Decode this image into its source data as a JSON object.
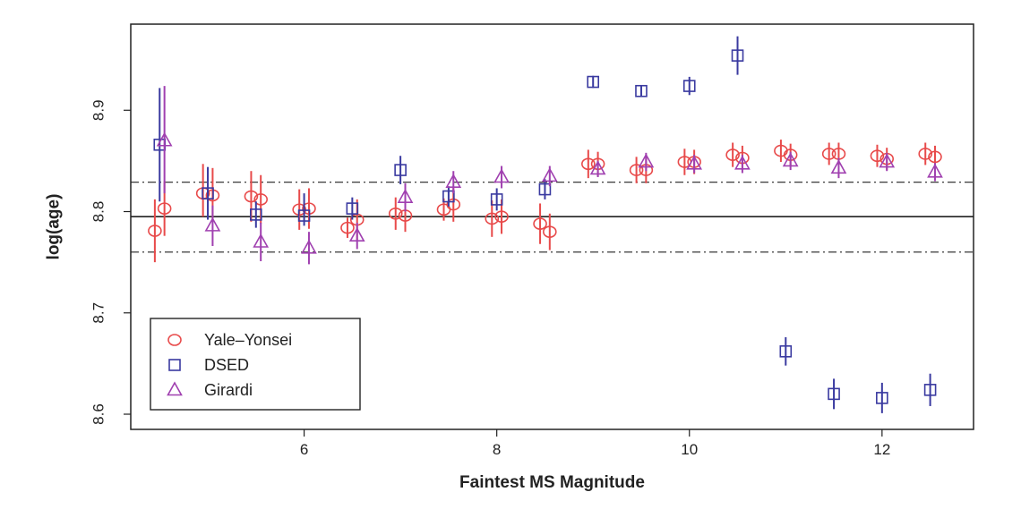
{
  "chart_data": {
    "type": "scatter",
    "xlabel": "Faintest MS Magnitude",
    "ylabel": "log(age)",
    "xlim": [
      4.2,
      12.95
    ],
    "ylim": [
      8.585,
      8.985
    ],
    "xticks": [
      6,
      8,
      10,
      12
    ],
    "xtick_labels": [
      "6",
      "8",
      "10",
      "12"
    ],
    "yticks": [
      8.6,
      8.7,
      8.8,
      8.9
    ],
    "ytick_labels": [
      "8.6",
      "8.7",
      "8.8",
      "8.9"
    ],
    "legend_position": "bottom-left",
    "reference_lines": [
      {
        "y": 8.795,
        "style": "solid"
      },
      {
        "y": 8.829,
        "style": "dash-dot"
      },
      {
        "y": 8.76,
        "style": "dash-dot"
      }
    ],
    "series": [
      {
        "name": "Yale–Yonsei",
        "marker": "circle",
        "color": "#e84a4a",
        "points": [
          {
            "x": 4.45,
            "y": 8.781,
            "ylo": 8.75,
            "yhi": 8.812
          },
          {
            "x": 4.55,
            "y": 8.803,
            "ylo": 8.776,
            "yhi": 8.83
          },
          {
            "x": 4.95,
            "y": 8.818,
            "ylo": 8.795,
            "yhi": 8.847
          },
          {
            "x": 5.05,
            "y": 8.816,
            "ylo": 8.793,
            "yhi": 8.843
          },
          {
            "x": 5.45,
            "y": 8.815,
            "ylo": 8.79,
            "yhi": 8.84
          },
          {
            "x": 5.55,
            "y": 8.812,
            "ylo": 8.788,
            "yhi": 8.836
          },
          {
            "x": 5.95,
            "y": 8.802,
            "ylo": 8.782,
            "yhi": 8.822
          },
          {
            "x": 6.05,
            "y": 8.803,
            "ylo": 8.783,
            "yhi": 8.823
          },
          {
            "x": 6.45,
            "y": 8.784,
            "ylo": 8.774,
            "yhi": 8.794
          },
          {
            "x": 6.55,
            "y": 8.792,
            "ylo": 8.772,
            "yhi": 8.812
          },
          {
            "x": 6.95,
            "y": 8.798,
            "ylo": 8.782,
            "yhi": 8.814
          },
          {
            "x": 7.05,
            "y": 8.796,
            "ylo": 8.78,
            "yhi": 8.812
          },
          {
            "x": 7.45,
            "y": 8.802,
            "ylo": 8.791,
            "yhi": 8.813
          },
          {
            "x": 7.55,
            "y": 8.807,
            "ylo": 8.79,
            "yhi": 8.824
          },
          {
            "x": 7.95,
            "y": 8.793,
            "ylo": 8.775,
            "yhi": 8.811
          },
          {
            "x": 8.05,
            "y": 8.795,
            "ylo": 8.778,
            "yhi": 8.812
          },
          {
            "x": 8.45,
            "y": 8.788,
            "ylo": 8.768,
            "yhi": 8.808
          },
          {
            "x": 8.55,
            "y": 8.78,
            "ylo": 8.762,
            "yhi": 8.798
          },
          {
            "x": 8.95,
            "y": 8.847,
            "ylo": 8.833,
            "yhi": 8.861
          },
          {
            "x": 9.05,
            "y": 8.847,
            "ylo": 8.835,
            "yhi": 8.859
          },
          {
            "x": 9.45,
            "y": 8.841,
            "ylo": 8.828,
            "yhi": 8.854
          },
          {
            "x": 9.55,
            "y": 8.841,
            "ylo": 8.828,
            "yhi": 8.854
          },
          {
            "x": 9.95,
            "y": 8.849,
            "ylo": 8.836,
            "yhi": 8.862
          },
          {
            "x": 10.05,
            "y": 8.849,
            "ylo": 8.837,
            "yhi": 8.861
          },
          {
            "x": 10.45,
            "y": 8.856,
            "ylo": 8.844,
            "yhi": 8.868
          },
          {
            "x": 10.55,
            "y": 8.853,
            "ylo": 8.841,
            "yhi": 8.865
          },
          {
            "x": 10.95,
            "y": 8.86,
            "ylo": 8.849,
            "yhi": 8.871
          },
          {
            "x": 11.05,
            "y": 8.856,
            "ylo": 8.845,
            "yhi": 8.867
          },
          {
            "x": 11.45,
            "y": 8.857,
            "ylo": 8.846,
            "yhi": 8.868
          },
          {
            "x": 11.55,
            "y": 8.857,
            "ylo": 8.846,
            "yhi": 8.868
          },
          {
            "x": 11.95,
            "y": 8.855,
            "ylo": 8.844,
            "yhi": 8.866
          },
          {
            "x": 12.05,
            "y": 8.852,
            "ylo": 8.841,
            "yhi": 8.863
          },
          {
            "x": 12.45,
            "y": 8.857,
            "ylo": 8.846,
            "yhi": 8.868
          },
          {
            "x": 12.55,
            "y": 8.854,
            "ylo": 8.843,
            "yhi": 8.865
          }
        ]
      },
      {
        "name": "DSED",
        "marker": "square",
        "color": "#3a3aa0",
        "points": [
          {
            "x": 4.5,
            "y": 8.866,
            "ylo": 8.81,
            "yhi": 8.922
          },
          {
            "x": 5.0,
            "y": 8.818,
            "ylo": 8.792,
            "yhi": 8.844
          },
          {
            "x": 5.5,
            "y": 8.797,
            "ylo": 8.784,
            "yhi": 8.81
          },
          {
            "x": 6.0,
            "y": 8.796,
            "ylo": 8.786,
            "yhi": 8.818
          },
          {
            "x": 6.5,
            "y": 8.803,
            "ylo": 8.792,
            "yhi": 8.814
          },
          {
            "x": 7.0,
            "y": 8.841,
            "ylo": 8.827,
            "yhi": 8.855
          },
          {
            "x": 7.5,
            "y": 8.815,
            "ylo": 8.805,
            "yhi": 8.825
          },
          {
            "x": 8.0,
            "y": 8.812,
            "ylo": 8.801,
            "yhi": 8.823
          },
          {
            "x": 8.5,
            "y": 8.822,
            "ylo": 8.812,
            "yhi": 8.832
          },
          {
            "x": 9.0,
            "y": 8.928,
            "ylo": 8.922,
            "yhi": 8.934
          },
          {
            "x": 9.5,
            "y": 8.919,
            "ylo": 8.914,
            "yhi": 8.924
          },
          {
            "x": 10.0,
            "y": 8.924,
            "ylo": 8.915,
            "yhi": 8.933
          },
          {
            "x": 10.5,
            "y": 8.954,
            "ylo": 8.935,
            "yhi": 8.973
          },
          {
            "x": 11.0,
            "y": 8.662,
            "ylo": 8.648,
            "yhi": 8.676
          },
          {
            "x": 11.5,
            "y": 8.62,
            "ylo": 8.605,
            "yhi": 8.635
          },
          {
            "x": 12.0,
            "y": 8.616,
            "ylo": 8.601,
            "yhi": 8.631
          },
          {
            "x": 12.5,
            "y": 8.624,
            "ylo": 8.608,
            "yhi": 8.64
          }
        ]
      },
      {
        "name": "Girardi",
        "marker": "triangle",
        "color": "#a040b0",
        "points": [
          {
            "x": 4.55,
            "y": 8.87,
            "ylo": 8.818,
            "yhi": 8.924
          },
          {
            "x": 5.05,
            "y": 8.786,
            "ylo": 8.766,
            "yhi": 8.806
          },
          {
            "x": 5.55,
            "y": 8.77,
            "ylo": 8.751,
            "yhi": 8.789
          },
          {
            "x": 6.05,
            "y": 8.764,
            "ylo": 8.748,
            "yhi": 8.78
          },
          {
            "x": 6.55,
            "y": 8.776,
            "ylo": 8.763,
            "yhi": 8.789
          },
          {
            "x": 7.05,
            "y": 8.814,
            "ylo": 8.8,
            "yhi": 8.828
          },
          {
            "x": 7.55,
            "y": 8.829,
            "ylo": 8.818,
            "yhi": 8.84
          },
          {
            "x": 8.05,
            "y": 8.834,
            "ylo": 8.823,
            "yhi": 8.845
          },
          {
            "x": 8.55,
            "y": 8.835,
            "ylo": 8.825,
            "yhi": 8.845
          },
          {
            "x": 9.05,
            "y": 8.842,
            "ylo": 8.834,
            "yhi": 8.85
          },
          {
            "x": 9.55,
            "y": 8.849,
            "ylo": 8.84,
            "yhi": 8.858
          },
          {
            "x": 10.05,
            "y": 8.847,
            "ylo": 8.838,
            "yhi": 8.856
          },
          {
            "x": 10.55,
            "y": 8.847,
            "ylo": 8.838,
            "yhi": 8.856
          },
          {
            "x": 11.05,
            "y": 8.85,
            "ylo": 8.841,
            "yhi": 8.859
          },
          {
            "x": 11.55,
            "y": 8.843,
            "ylo": 8.833,
            "yhi": 8.853
          },
          {
            "x": 12.05,
            "y": 8.849,
            "ylo": 8.84,
            "yhi": 8.858
          },
          {
            "x": 12.55,
            "y": 8.839,
            "ylo": 8.83,
            "yhi": 8.848
          }
        ]
      }
    ]
  }
}
